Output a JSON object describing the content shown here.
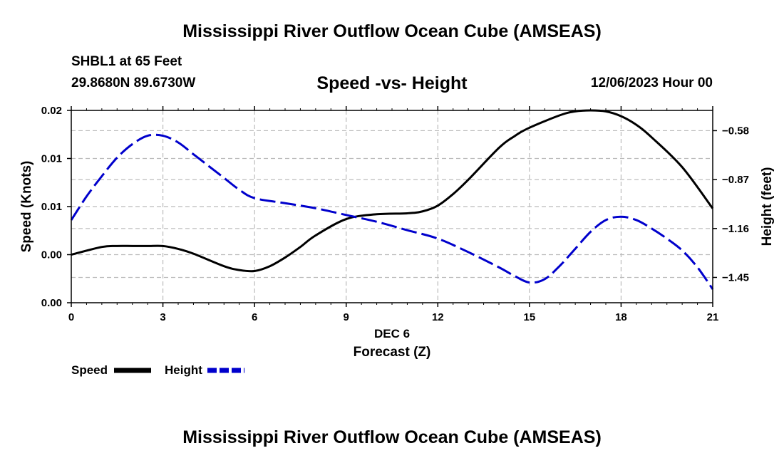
{
  "header": {
    "title": "Mississippi River Outflow Ocean Cube (AMSEAS)",
    "station_line": "SHBL1 at 65 Feet",
    "coords_line": "29.8680N  89.6730W",
    "date_line": "12/06/2023 Hour 00"
  },
  "footer": {
    "title": "Mississippi River Outflow Ocean Cube (AMSEAS)"
  },
  "colors": {
    "speed": "#000000",
    "height": "#0000cc",
    "grid": "#bbbbbb"
  },
  "chart_data": {
    "type": "line",
    "title": "Speed -vs- Height",
    "xlabel_top": "DEC 6",
    "xlabel": "Forecast (Z)",
    "ylabel_left": "Speed (Knots)",
    "ylabel_right": "Height (feet)",
    "xlim": [
      0,
      21
    ],
    "x_ticks": [
      0,
      3,
      6,
      9,
      12,
      15,
      18,
      21
    ],
    "x_tick_labels": [
      "0",
      "3",
      "6",
      "9",
      "12",
      "15",
      "18",
      "21"
    ],
    "ylim_left": [
      0,
      0.02
    ],
    "y_left_ticks": [
      0,
      0.005,
      0.01,
      0.015,
      0.02
    ],
    "y_left_tick_labels": [
      "0.00",
      "0.00",
      "0.01",
      "0.01",
      "0.02"
    ],
    "ylim_right": [
      -1.6,
      -0.46
    ],
    "y_right_ticks": [
      -0.58,
      -0.87,
      -1.16,
      -1.45
    ],
    "y_right_tick_labels": [
      "-0.58",
      "-0.87",
      "-1.16",
      "-1.45"
    ],
    "series": [
      {
        "name": "Speed",
        "axis": "left",
        "style": "solid",
        "x": [
          0,
          1,
          1.5,
          2,
          2.5,
          3,
          3.5,
          4,
          5,
          5.5,
          6,
          6.5,
          7,
          7.5,
          8,
          9,
          10,
          11,
          11.5,
          12,
          12.5,
          13,
          14,
          14.5,
          15,
          16,
          16.5,
          17,
          17.5,
          18,
          18.5,
          19,
          20,
          21
        ],
        "values": [
          0.005,
          0.0058,
          0.0059,
          0.0059,
          0.0059,
          0.0059,
          0.0056,
          0.0051,
          0.0038,
          0.0034,
          0.0033,
          0.0038,
          0.0047,
          0.0058,
          0.007,
          0.0087,
          0.0092,
          0.0093,
          0.0095,
          0.0101,
          0.0113,
          0.0128,
          0.0161,
          0.0173,
          0.0182,
          0.0195,
          0.0199,
          0.02,
          0.0199,
          0.0194,
          0.0185,
          0.0172,
          0.0141,
          0.0098
        ]
      },
      {
        "name": "Height",
        "axis": "right",
        "style": "dashed",
        "x": [
          0,
          0.5,
          1,
          1.5,
          2,
          2.5,
          3,
          3.5,
          4,
          4.5,
          5,
          5.5,
          6,
          7,
          8,
          9,
          10,
          11,
          12,
          13,
          14,
          14.5,
          15,
          15.5,
          16,
          16.5,
          17,
          17.5,
          18,
          18.5,
          19,
          19.5,
          20,
          20.5,
          21
        ],
        "values": [
          -1.11,
          -0.97,
          -0.85,
          -0.74,
          -0.66,
          -0.61,
          -0.61,
          -0.65,
          -0.72,
          -0.79,
          -0.86,
          -0.93,
          -0.98,
          -1.01,
          -1.04,
          -1.08,
          -1.12,
          -1.17,
          -1.22,
          -1.3,
          -1.39,
          -1.44,
          -1.48,
          -1.46,
          -1.38,
          -1.28,
          -1.18,
          -1.11,
          -1.09,
          -1.11,
          -1.16,
          -1.22,
          -1.29,
          -1.39,
          -1.52
        ]
      }
    ],
    "legend": [
      {
        "label": "Speed"
      },
      {
        "label": "Height"
      }
    ],
    "legend_position": "bottom-left",
    "grid": true
  }
}
